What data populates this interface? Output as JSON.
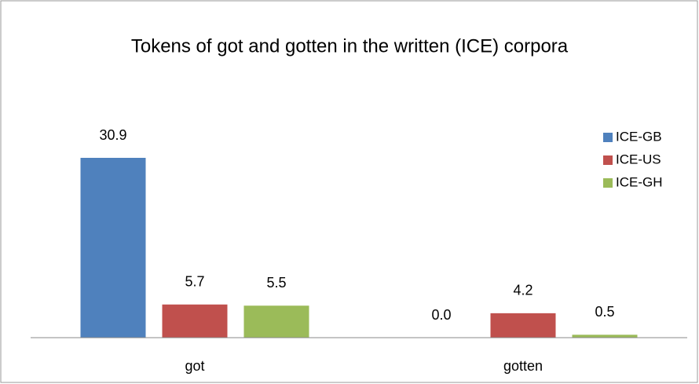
{
  "chart_data": {
    "type": "bar",
    "title": "Tokens of got and gotten in the written (ICE) corpora",
    "categories": [
      "got",
      "gotten"
    ],
    "series": [
      {
        "name": "ICE-GB",
        "color": "#4f81bd",
        "values": [
          30.9,
          0
        ],
        "value_labels": [
          "30.9",
          "0.0"
        ]
      },
      {
        "name": "ICE-US",
        "color": "#c0504d",
        "values": [
          5.7,
          4.2
        ]
      },
      {
        "name": "ICE-GH",
        "color": "#9bbb59",
        "values": [
          5.5,
          0.5
        ]
      }
    ],
    "legend": "right"
  }
}
